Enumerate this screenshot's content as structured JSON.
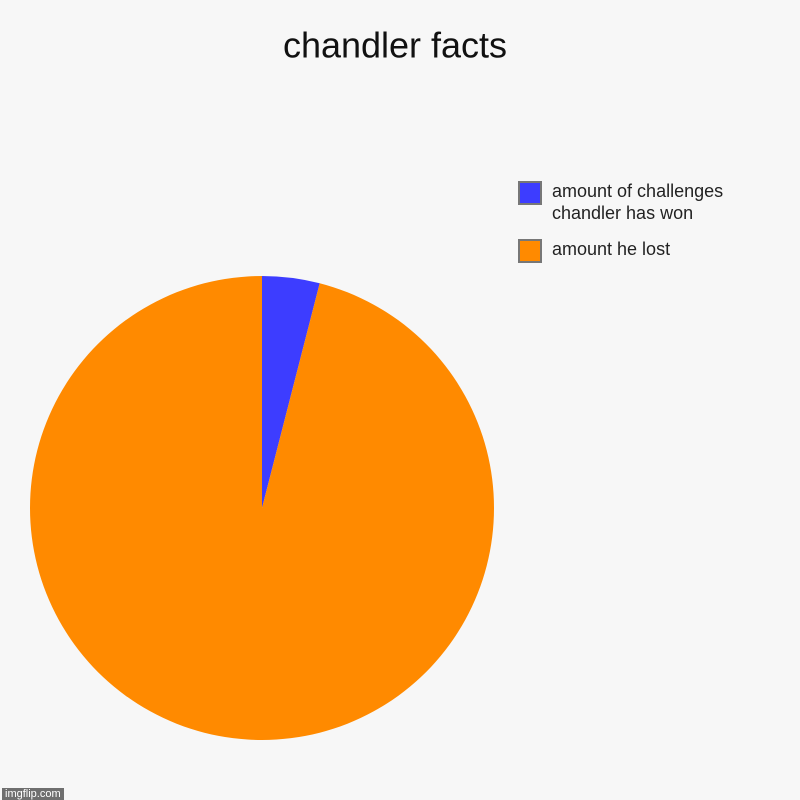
{
  "chart_data": {
    "type": "pie",
    "title": "chandler facts",
    "categories": [
      "amount of challenges chandler has won",
      "amount he lost"
    ],
    "values": [
      4,
      96
    ],
    "colors": [
      "#3d3dff",
      "#ff8a00"
    ],
    "legend": "top-right"
  },
  "watermark": "imgflip.com"
}
